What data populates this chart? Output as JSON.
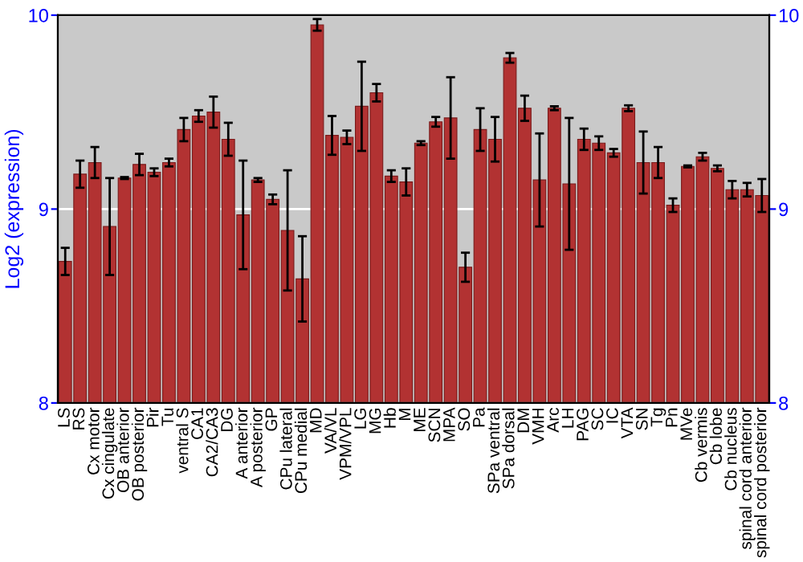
{
  "chart_data": {
    "type": "bar",
    "ylabel": "Log2 (expression)",
    "categories": [
      "LS",
      "RS",
      "Cx motor",
      "Cx cingulate",
      "OB anterior",
      "OB posterior",
      "Pir",
      "Tu",
      "ventral S",
      "CA1",
      "CA2/CA3",
      "DG",
      "A anterior",
      "A posterior",
      "GP",
      "CPu lateral",
      "CPu medial",
      "MD",
      "VA/VL",
      "VPM/VPL",
      "LG",
      "MG",
      "Hb",
      "M",
      "ME",
      "SCN",
      "MPA",
      "SO",
      "Pa",
      "SPa ventral",
      "SPa dorsal",
      "DM",
      "VMH",
      "Arc",
      "LH",
      "PAG",
      "SC",
      "IC",
      "VTA",
      "SN",
      "Tg",
      "Pn",
      "MVe",
      "Cb vermis",
      "Cb lobe",
      "Cb nucleus",
      "spinal cord anterior",
      "spinal cord posterior"
    ],
    "values": [
      8.73,
      9.18,
      9.24,
      8.91,
      9.16,
      9.23,
      9.19,
      9.24,
      9.41,
      9.48,
      9.5,
      9.36,
      8.97,
      9.15,
      9.05,
      8.89,
      8.64,
      9.95,
      9.38,
      9.37,
      9.53,
      9.6,
      9.17,
      9.14,
      9.34,
      9.45,
      9.47,
      8.7,
      9.41,
      9.36,
      9.78,
      9.52,
      9.15,
      9.52,
      9.13,
      9.36,
      9.34,
      9.29,
      9.52,
      9.24,
      9.24,
      9.02,
      9.22,
      9.27,
      9.21,
      9.1,
      9.1,
      9.07
    ],
    "errors": [
      0.07,
      0.07,
      0.08,
      0.25,
      0.005,
      0.055,
      0.02,
      0.02,
      0.06,
      0.03,
      0.08,
      0.085,
      0.28,
      0.01,
      0.025,
      0.31,
      0.22,
      0.03,
      0.1,
      0.035,
      0.23,
      0.045,
      0.03,
      0.07,
      0.01,
      0.025,
      0.21,
      0.075,
      0.11,
      0.115,
      0.025,
      0.065,
      0.24,
      0.01,
      0.34,
      0.055,
      0.035,
      0.02,
      0.015,
      0.16,
      0.08,
      0.035,
      0.005,
      0.02,
      0.015,
      0.045,
      0.035,
      0.085
    ],
    "color": "#b23232",
    "ylim": [
      8,
      10
    ],
    "yticks": [
      8,
      9,
      10
    ],
    "y2lim": [
      8,
      10
    ],
    "y2ticks": [
      8,
      9,
      10
    ],
    "grid": "y"
  }
}
